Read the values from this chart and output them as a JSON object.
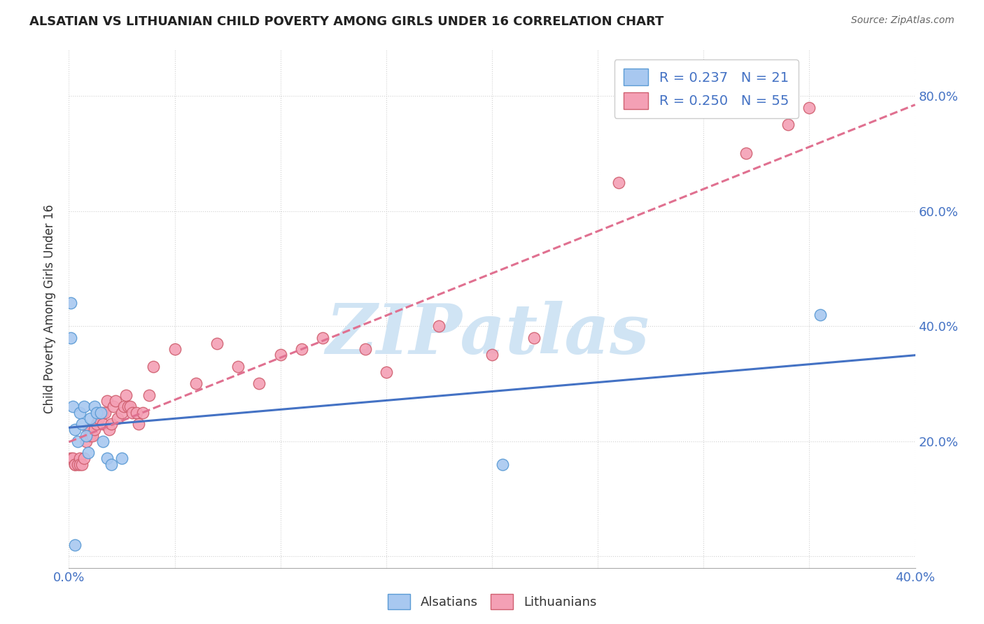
{
  "title": "ALSATIAN VS LITHUANIAN CHILD POVERTY AMONG GIRLS UNDER 16 CORRELATION CHART",
  "source": "Source: ZipAtlas.com",
  "ylabel": "Child Poverty Among Girls Under 16",
  "xlim": [
    0.0,
    0.4
  ],
  "ylim": [
    -0.02,
    0.88
  ],
  "xticks": [
    0.0,
    0.05,
    0.1,
    0.15,
    0.2,
    0.25,
    0.3,
    0.35,
    0.4
  ],
  "xticklabels": [
    "0.0%",
    "",
    "",
    "",
    "",
    "",
    "",
    "",
    "40.0%"
  ],
  "yticks": [
    0.0,
    0.2,
    0.4,
    0.6,
    0.8
  ],
  "yticklabels_right": [
    "",
    "20.0%",
    "40.0%",
    "60.0%",
    "80.0%"
  ],
  "legend1_label": "R = 0.237   N = 21",
  "legend2_label": "R = 0.250   N = 55",
  "scatter_alsatian_x": [
    0.001,
    0.002,
    0.003,
    0.004,
    0.005,
    0.006,
    0.007,
    0.008,
    0.009,
    0.01,
    0.012,
    0.013,
    0.015,
    0.016,
    0.018,
    0.02,
    0.025,
    0.205,
    0.355,
    0.001,
    0.003
  ],
  "scatter_alsatian_y": [
    0.44,
    0.26,
    0.22,
    0.2,
    0.25,
    0.23,
    0.26,
    0.21,
    0.18,
    0.24,
    0.26,
    0.25,
    0.25,
    0.2,
    0.17,
    0.16,
    0.17,
    0.16,
    0.42,
    0.38,
    0.02
  ],
  "scatter_lithuanian_x": [
    0.001,
    0.002,
    0.003,
    0.003,
    0.004,
    0.005,
    0.005,
    0.006,
    0.007,
    0.008,
    0.009,
    0.01,
    0.01,
    0.011,
    0.012,
    0.013,
    0.014,
    0.015,
    0.016,
    0.016,
    0.017,
    0.018,
    0.019,
    0.02,
    0.021,
    0.022,
    0.023,
    0.025,
    0.026,
    0.027,
    0.028,
    0.029,
    0.03,
    0.032,
    0.033,
    0.035,
    0.038,
    0.04,
    0.05,
    0.06,
    0.07,
    0.08,
    0.09,
    0.1,
    0.11,
    0.12,
    0.14,
    0.15,
    0.175,
    0.2,
    0.22,
    0.26,
    0.32,
    0.34,
    0.35
  ],
  "scatter_lithuanian_y": [
    0.17,
    0.17,
    0.16,
    0.16,
    0.16,
    0.17,
    0.16,
    0.16,
    0.17,
    0.2,
    0.22,
    0.22,
    0.21,
    0.21,
    0.22,
    0.23,
    0.24,
    0.25,
    0.25,
    0.23,
    0.25,
    0.27,
    0.22,
    0.23,
    0.26,
    0.27,
    0.24,
    0.25,
    0.26,
    0.28,
    0.26,
    0.26,
    0.25,
    0.25,
    0.23,
    0.25,
    0.28,
    0.33,
    0.36,
    0.3,
    0.37,
    0.33,
    0.3,
    0.35,
    0.36,
    0.38,
    0.36,
    0.32,
    0.4,
    0.35,
    0.38,
    0.65,
    0.7,
    0.75,
    0.78
  ],
  "alsatian_color": "#a8c8f0",
  "lithuanian_color": "#f4a0b5",
  "alsatian_edge_color": "#5b9bd5",
  "lithuanian_edge_color": "#d06070",
  "alsatian_line_color": "#4472c4",
  "lithuanian_line_color": "#e07090",
  "watermark_zip": "ZIP",
  "watermark_atlas": "atlas",
  "watermark_color": "#d0e4f4",
  "background_color": "#ffffff",
  "grid_color": "#cccccc",
  "title_color": "#222222",
  "label_color": "#333333",
  "tick_color": "#4472c4",
  "source_color": "#666666"
}
